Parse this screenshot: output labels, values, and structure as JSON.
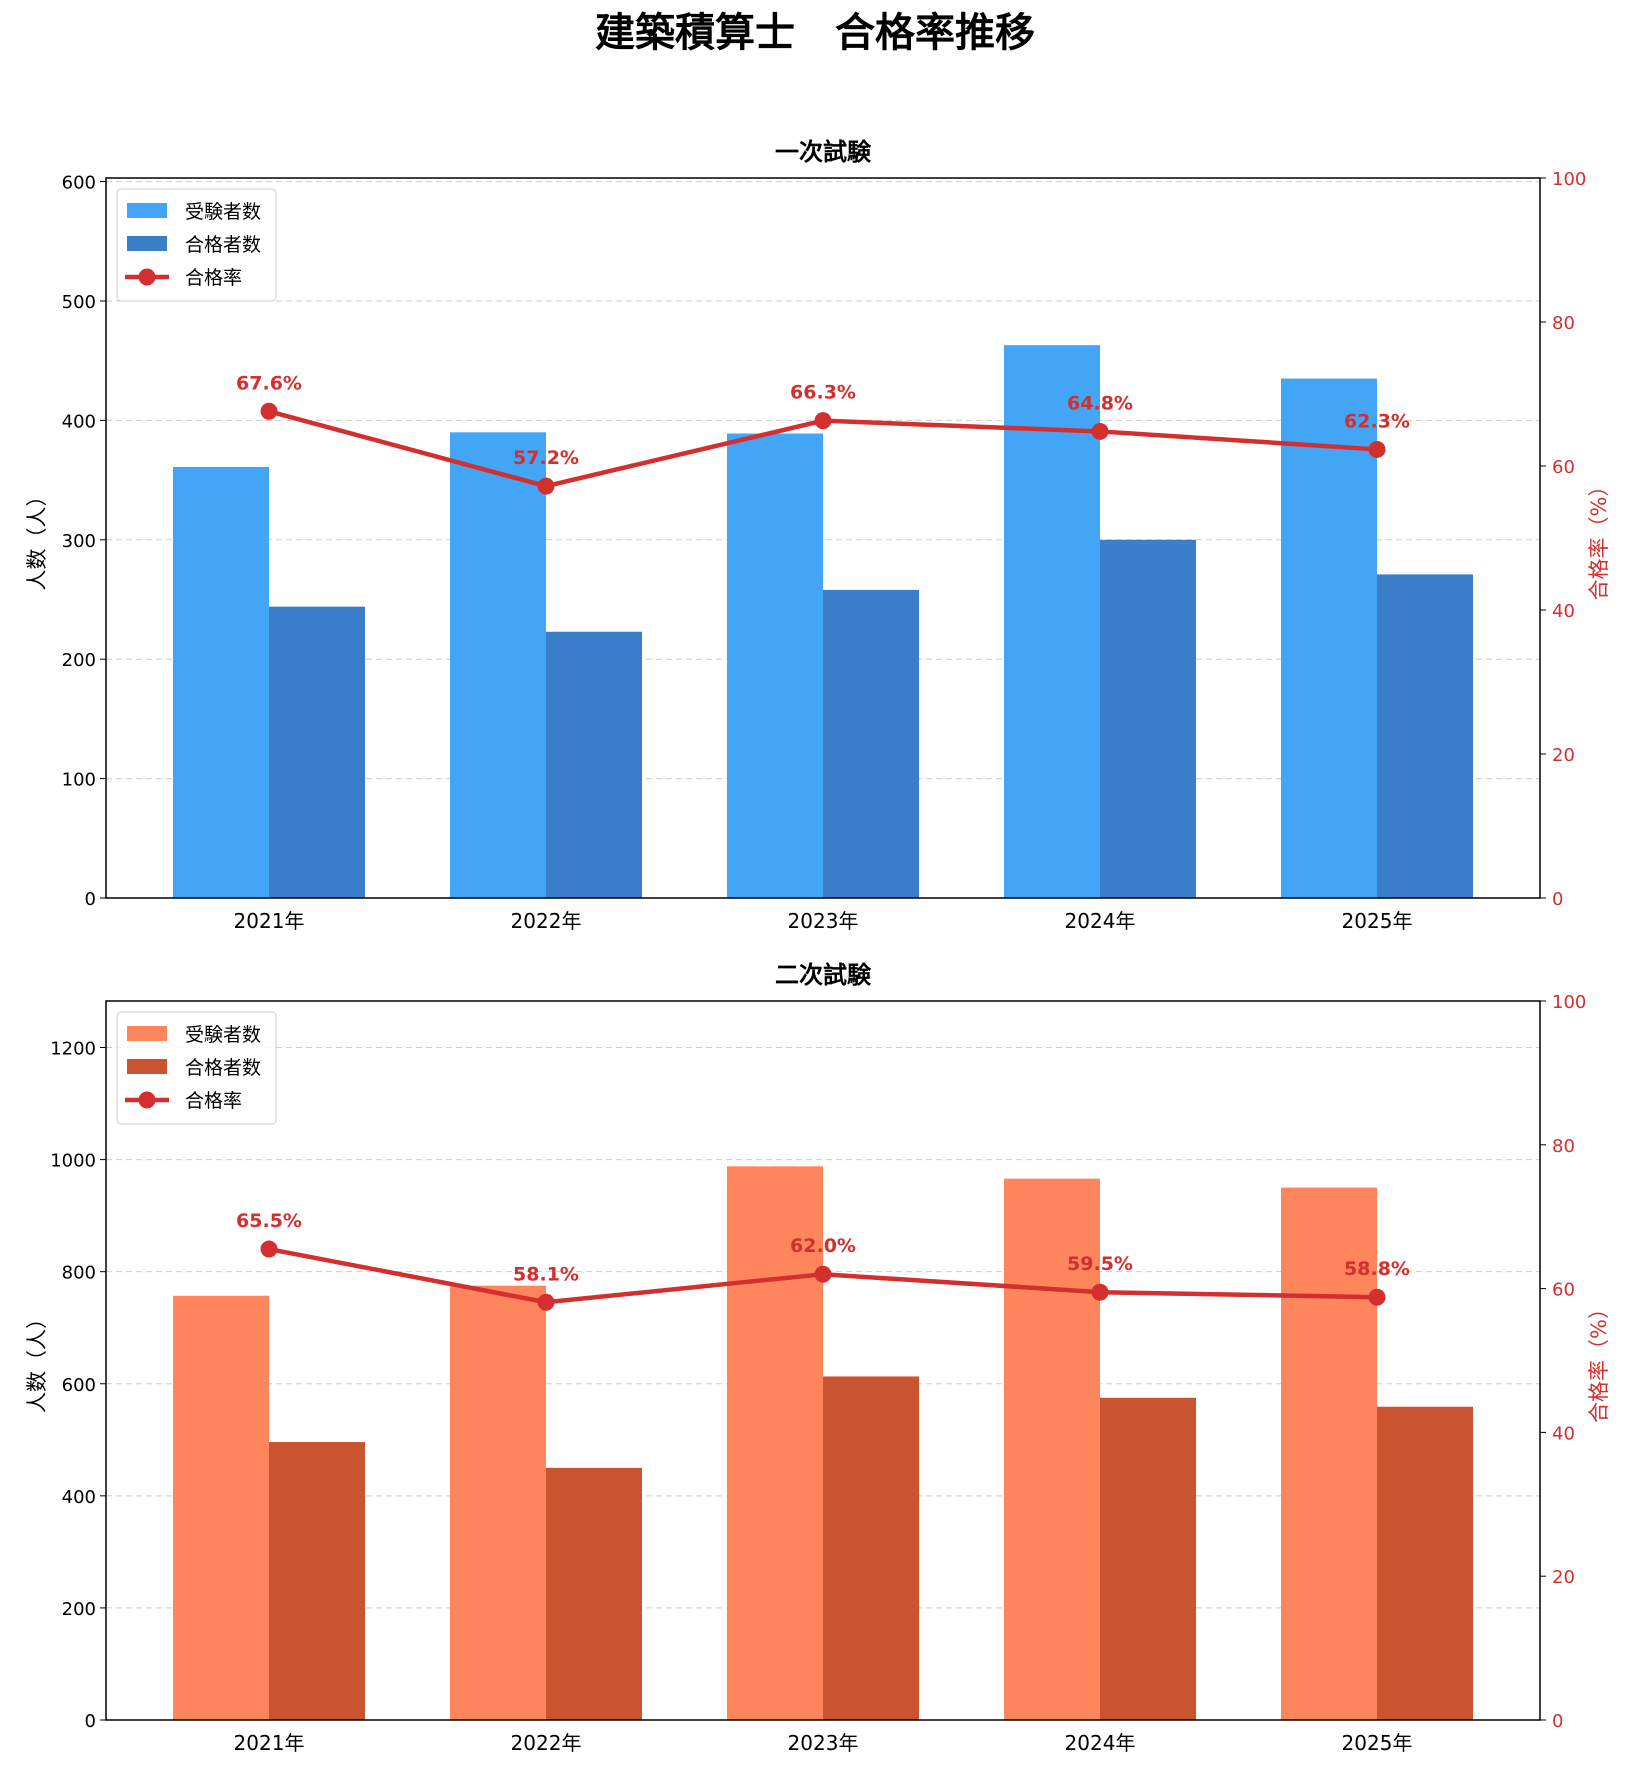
{
  "title": "建築積算士　合格率推移",
  "chart_data": [
    {
      "type": "bar",
      "title": "一次試験",
      "categories": [
        "2021年",
        "2022年",
        "2023年",
        "2024年",
        "2025年"
      ],
      "ylabel": "人数（人）",
      "y2label": "合格率（%）",
      "ylim": [
        0,
        603
      ],
      "yticks": [
        0,
        100,
        200,
        300,
        400,
        500,
        600
      ],
      "y2lim": [
        0,
        100
      ],
      "y2ticks": [
        0,
        20,
        40,
        60,
        80,
        100
      ],
      "grid": true,
      "legend": "top-left",
      "series": [
        {
          "name": "受験者数",
          "type": "bar",
          "color": "#42A5F5",
          "values": [
            361,
            390,
            389,
            463,
            435
          ]
        },
        {
          "name": "合格者数",
          "type": "bar",
          "color": "#3A7DC9",
          "values": [
            244,
            223,
            258,
            300,
            271
          ]
        },
        {
          "name": "合格率",
          "type": "line",
          "axis": "right",
          "color": "#D32F2F",
          "values": [
            67.6,
            57.2,
            66.3,
            64.8,
            62.3
          ],
          "labels": [
            "67.6%",
            "57.2%",
            "66.3%",
            "64.8%",
            "62.3%"
          ]
        }
      ]
    },
    {
      "type": "bar",
      "title": "二次試験",
      "categories": [
        "2021年",
        "2022年",
        "2023年",
        "2024年",
        "2025年"
      ],
      "ylabel": "人数（人）",
      "y2label": "合格率（%）",
      "ylim": [
        0,
        1283
      ],
      "yticks": [
        0,
        200,
        400,
        600,
        800,
        1000,
        1200
      ],
      "y2lim": [
        0,
        100
      ],
      "y2ticks": [
        0,
        20,
        40,
        60,
        80,
        100
      ],
      "grid": true,
      "legend": "top-left",
      "series": [
        {
          "name": "受験者数",
          "type": "bar",
          "color": "#FF855C",
          "values": [
            757,
            775,
            988,
            966,
            950
          ]
        },
        {
          "name": "合格者数",
          "type": "bar",
          "color": "#C9542F",
          "values": [
            496,
            450,
            613,
            575,
            559
          ]
        },
        {
          "name": "合格率",
          "type": "line",
          "axis": "right",
          "color": "#D32F2F",
          "values": [
            65.5,
            58.1,
            62.0,
            59.5,
            58.8
          ],
          "labels": [
            "65.5%",
            "58.1%",
            "62.0%",
            "59.5%",
            "58.8%"
          ]
        }
      ]
    }
  ]
}
